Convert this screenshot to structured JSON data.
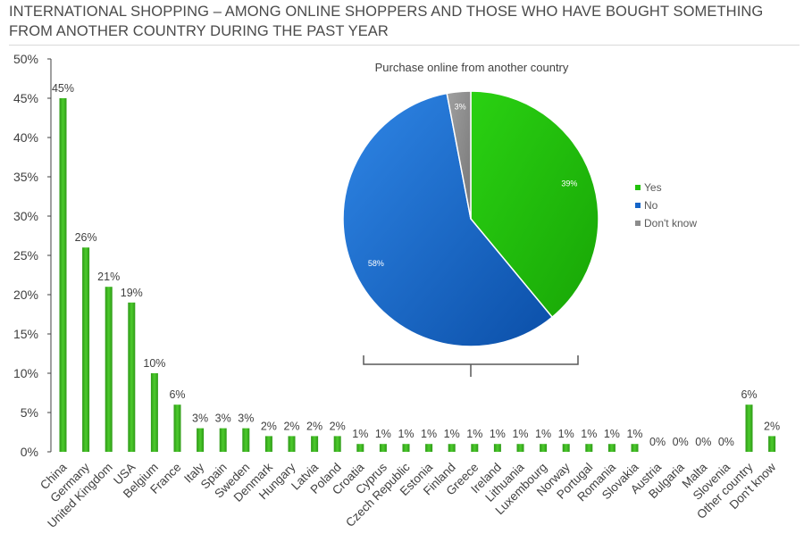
{
  "title": "INTERNATIONAL SHOPPING – AMONG ONLINE SHOPPERS AND THOSE WHO HAVE BOUGHT SOMETHING FROM ANOTHER COUNTRY DURING THE PAST YEAR",
  "colors": {
    "bar": "#3cb521",
    "pie_yes": "#22c10a",
    "pie_no": "#1565c8",
    "pie_dont_know": "#8c8c8c"
  },
  "chart_data": [
    {
      "type": "bar",
      "title": "",
      "xlabel": "",
      "ylabel": "",
      "ylim": [
        0,
        50
      ],
      "y_ticks": [
        "0%",
        "5%",
        "10%",
        "15%",
        "20%",
        "25%",
        "30%",
        "35%",
        "40%",
        "45%",
        "50%"
      ],
      "grid": false,
      "categories": [
        "China",
        "Germany",
        "United Kingdom",
        "USA",
        "Belgium",
        "France",
        "Italy",
        "Spain",
        "Sweden",
        "Denmark",
        "Hungary",
        "Latvia",
        "Poland",
        "Croatia",
        "Cyprus",
        "Czech Republic",
        "Estonia",
        "Finland",
        "Greece",
        "Ireland",
        "Lithuania",
        "Luxembourg",
        "Norway",
        "Portugal",
        "Romania",
        "Slovakia",
        "Austria",
        "Bulgaria",
        "Malta",
        "Slovenia",
        "Other country",
        "Don't know"
      ],
      "values": [
        45,
        26,
        21,
        19,
        10,
        6,
        3,
        3,
        3,
        2,
        2,
        2,
        2,
        1,
        1,
        1,
        1,
        1,
        1,
        1,
        1,
        1,
        1,
        1,
        1,
        1,
        0,
        0,
        0,
        0,
        6,
        2
      ],
      "data_labels": [
        "45%",
        "26%",
        "21%",
        "19%",
        "10%",
        "6%",
        "3%",
        "3%",
        "3%",
        "2%",
        "2%",
        "2%",
        "2%",
        "1%",
        "1%",
        "1%",
        "1%",
        "1%",
        "1%",
        "1%",
        "1%",
        "1%",
        "1%",
        "1%",
        "1%",
        "1%",
        "0%",
        "0%",
        "0%",
        "0%",
        "6%",
        "2%"
      ]
    },
    {
      "type": "pie",
      "title": "Purchase online from another country",
      "legend_position": "right",
      "slices": [
        {
          "label": "Yes",
          "value": 39,
          "data_label": "39%",
          "color": "#22c10a"
        },
        {
          "label": "No",
          "value": 58,
          "data_label": "58%",
          "color": "#1565c8"
        },
        {
          "label": "Don't know",
          "value": 3,
          "data_label": "3%",
          "color": "#8c8c8c"
        }
      ]
    }
  ]
}
